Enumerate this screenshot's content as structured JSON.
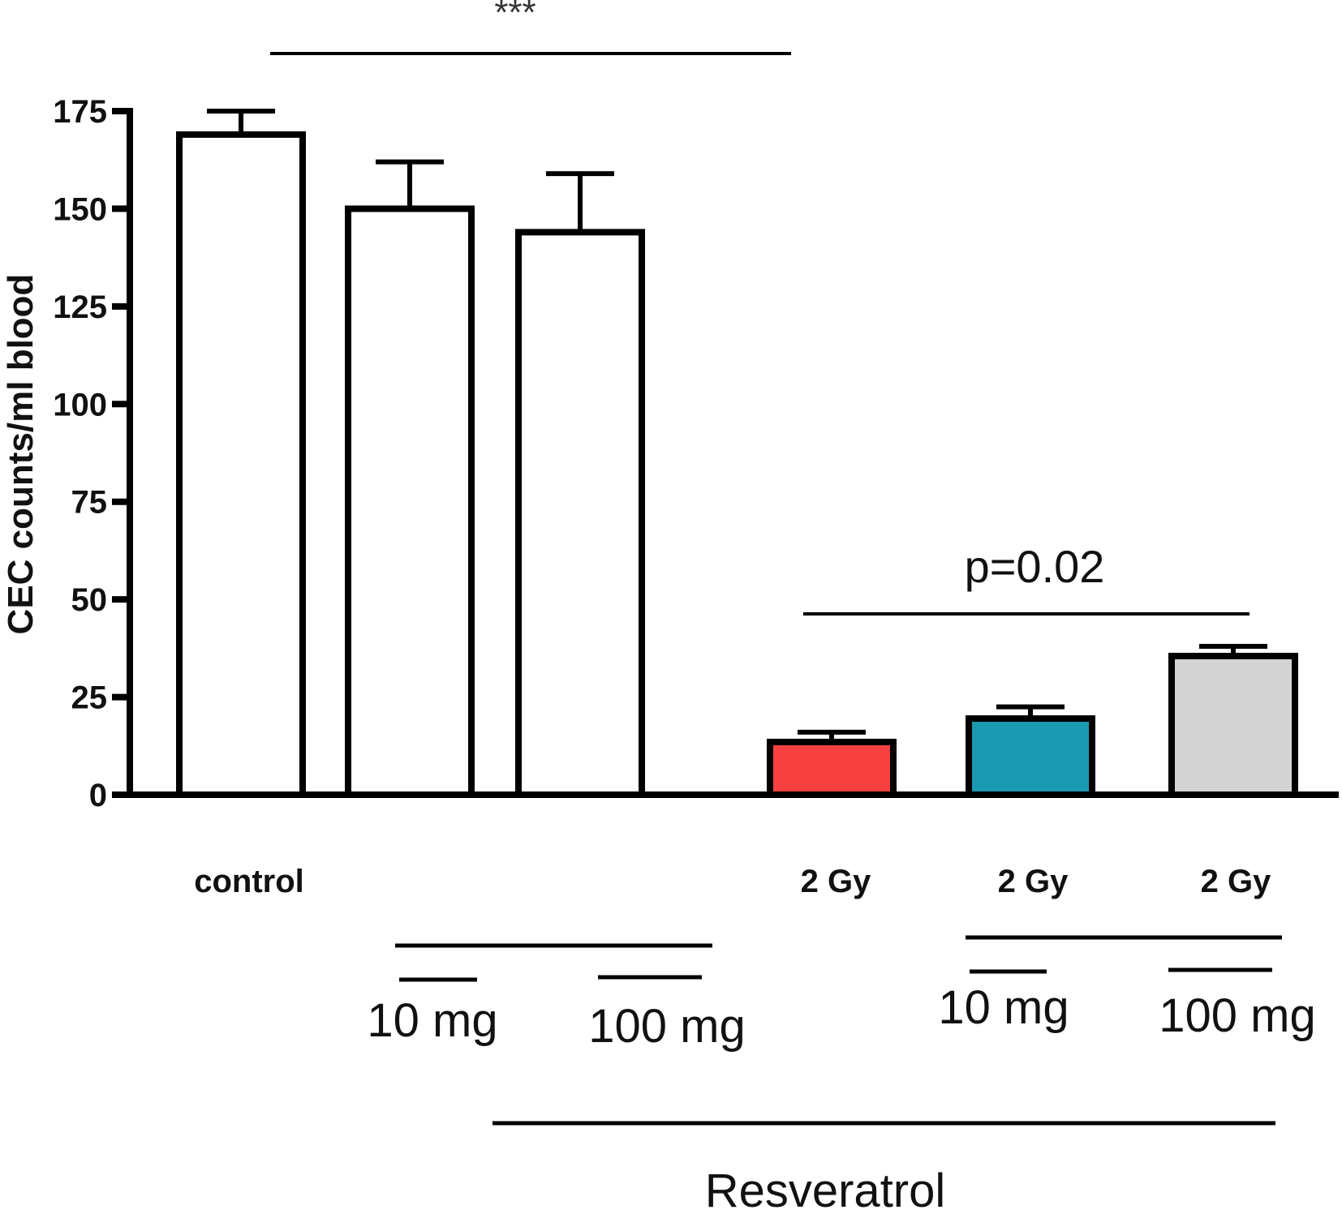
{
  "chart_data": {
    "type": "bar",
    "title": "",
    "ylabel": "CEC counts/ml blood",
    "xlabel": "",
    "ylim": [
      0,
      175
    ],
    "yticks": [
      0,
      25,
      50,
      75,
      100,
      125,
      150,
      175
    ],
    "categories": [
      "control",
      "",
      "",
      "2 Gy",
      "2 Gy",
      "2 Gy"
    ],
    "bars": [
      {
        "label": "control",
        "value": 169,
        "error": 6,
        "color": "#ffffff"
      },
      {
        "label": "",
        "value": 150,
        "error": 12,
        "color": "#ffffff"
      },
      {
        "label": "",
        "value": 144,
        "error": 15,
        "color": "#ffffff"
      },
      {
        "label": "2 Gy",
        "value": 13.5,
        "error": 2.5,
        "color": "#f84040"
      },
      {
        "label": "2 Gy",
        "value": 19.5,
        "error": 3,
        "color": "#1a9ab0"
      },
      {
        "label": "2 Gy",
        "value": 35.5,
        "error": 2.5,
        "color": "#d3d3d3"
      }
    ],
    "annotations": {
      "stars": "***",
      "pvalue": "p=0.02"
    },
    "dose_labels": [
      "10 mg",
      "100 mg",
      "10 mg",
      "100 mg"
    ],
    "treatment_label": "Resveratrol"
  }
}
